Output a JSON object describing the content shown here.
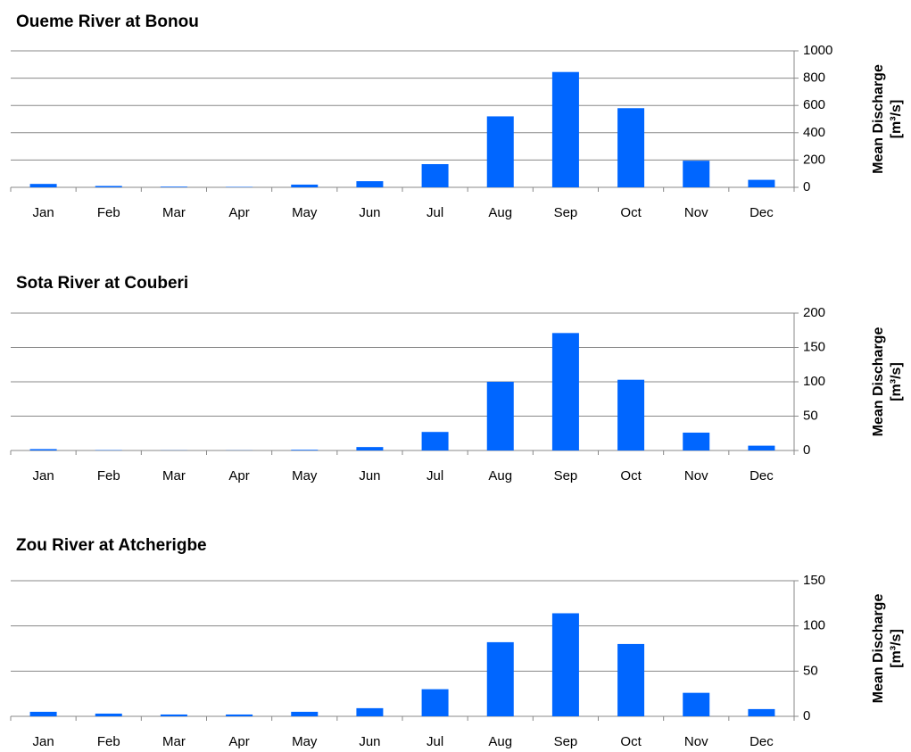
{
  "chart_data": [
    {
      "type": "bar",
      "title": "Oueme River at Bonou",
      "ylabel": [
        "Mean Discharge",
        "[m³/s]"
      ],
      "categories": [
        "Jan",
        "Feb",
        "Mar",
        "Apr",
        "May",
        "Jun",
        "Jul",
        "Aug",
        "Sep",
        "Oct",
        "Nov",
        "Dec"
      ],
      "values": [
        25,
        10,
        5,
        3,
        20,
        45,
        170,
        520,
        845,
        580,
        195,
        55
      ],
      "color": "#0066ff",
      "ylim": [
        0,
        1000
      ],
      "yticks": [
        0,
        200,
        400,
        600,
        800,
        1000
      ],
      "grid": true
    },
    {
      "type": "bar",
      "title": "Sota River at Couberi",
      "ylabel": [
        "Mean Discharge",
        "[m³/s]"
      ],
      "categories": [
        "Jan",
        "Feb",
        "Mar",
        "Apr",
        "May",
        "Jun",
        "Jul",
        "Aug",
        "Sep",
        "Oct",
        "Nov",
        "Dec"
      ],
      "values": [
        2,
        0.5,
        0.2,
        0.2,
        1,
        5,
        27,
        100,
        171,
        103,
        26,
        7
      ],
      "color": "#0066ff",
      "ylim": [
        0,
        200
      ],
      "yticks": [
        0,
        50,
        100,
        150,
        200
      ],
      "grid": true
    },
    {
      "type": "bar",
      "title": "Zou River at Atcherigbe",
      "ylabel": [
        "Mean Discharge",
        "[m³/s]"
      ],
      "categories": [
        "Jan",
        "Feb",
        "Mar",
        "Apr",
        "May",
        "Jun",
        "Jul",
        "Aug",
        "Sep",
        "Oct",
        "Nov",
        "Dec"
      ],
      "values": [
        5,
        3,
        2,
        2,
        5,
        9,
        30,
        82,
        114,
        80,
        26,
        8
      ],
      "color": "#0066ff",
      "ylim": [
        0,
        150
      ],
      "yticks": [
        0,
        50,
        100,
        150
      ],
      "grid": true
    }
  ]
}
